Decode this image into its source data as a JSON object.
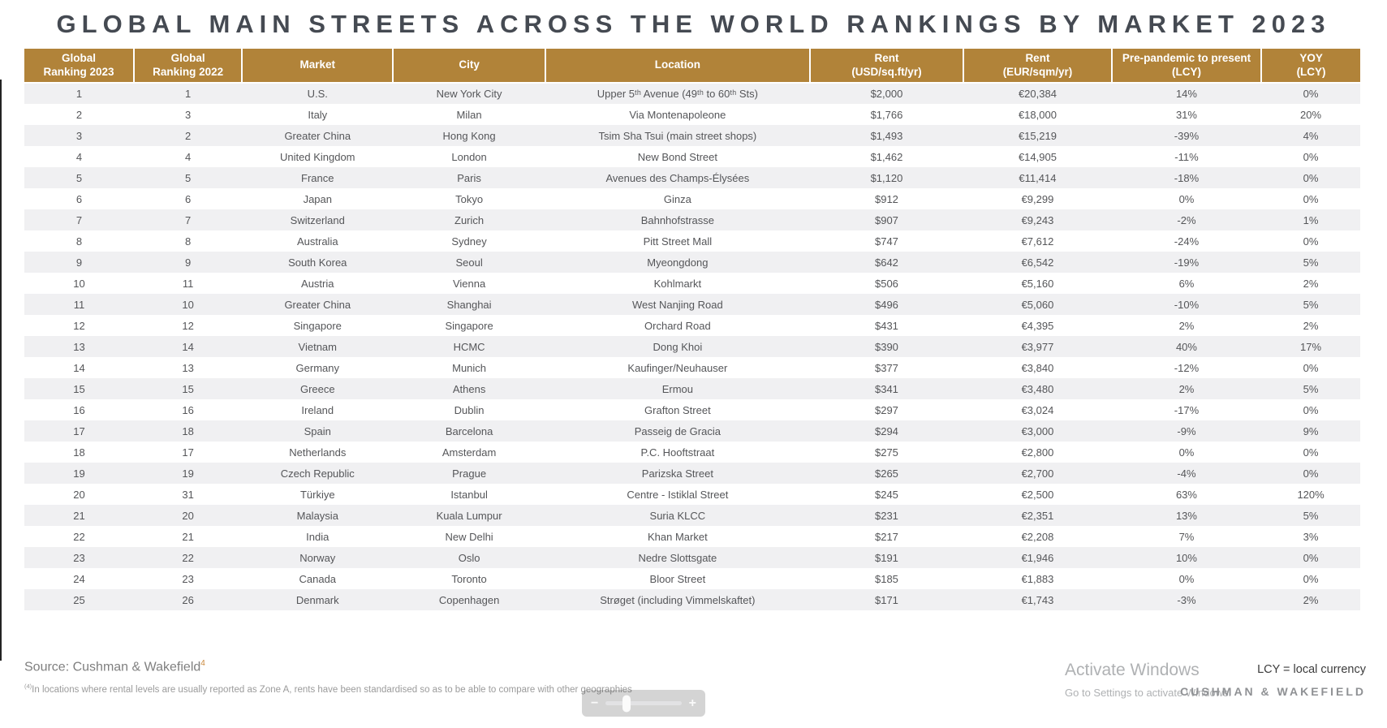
{
  "title": "GLOBAL MAIN STREETS ACROSS THE WORLD RANKINGS BY MARKET 2023",
  "table": {
    "columns": [
      "Global\nRanking 2023",
      "Global\nRanking 2022",
      "Market",
      "City",
      "Location",
      "Rent\n(USD/sq.ft/yr)",
      "Rent\n(EUR/sqm/yr)",
      "Pre-pandemic to present\n(LCY)",
      "YOY\n(LCY)"
    ],
    "rows": [
      [
        "1",
        "1",
        "U.S.",
        "New York City",
        "Upper 5ᵗʰ Avenue (49ᵗʰ to 60ᵗʰ Sts)",
        "$2,000",
        "€20,384",
        "14%",
        "0%"
      ],
      [
        "2",
        "3",
        "Italy",
        "Milan",
        "Via Montenapoleone",
        "$1,766",
        "€18,000",
        "31%",
        "20%"
      ],
      [
        "3",
        "2",
        "Greater China",
        "Hong Kong",
        "Tsim Sha Tsui (main street shops)",
        "$1,493",
        "€15,219",
        "-39%",
        "4%"
      ],
      [
        "4",
        "4",
        "United Kingdom",
        "London",
        "New Bond Street",
        "$1,462",
        "€14,905",
        "-11%",
        "0%"
      ],
      [
        "5",
        "5",
        "France",
        "Paris",
        "Avenues des Champs-Élysées",
        "$1,120",
        "€11,414",
        "-18%",
        "0%"
      ],
      [
        "6",
        "6",
        "Japan",
        "Tokyo",
        "Ginza",
        "$912",
        "€9,299",
        "0%",
        "0%"
      ],
      [
        "7",
        "7",
        "Switzerland",
        "Zurich",
        "Bahnhofstrasse",
        "$907",
        "€9,243",
        "-2%",
        "1%"
      ],
      [
        "8",
        "8",
        "Australia",
        "Sydney",
        "Pitt Street Mall",
        "$747",
        "€7,612",
        "-24%",
        "0%"
      ],
      [
        "9",
        "9",
        "South Korea",
        "Seoul",
        "Myeongdong",
        "$642",
        "€6,542",
        "-19%",
        "5%"
      ],
      [
        "10",
        "11",
        "Austria",
        "Vienna",
        "Kohlmarkt",
        "$506",
        "€5,160",
        "6%",
        "2%"
      ],
      [
        "11",
        "10",
        "Greater China",
        "Shanghai",
        "West Nanjing Road",
        "$496",
        "€5,060",
        "-10%",
        "5%"
      ],
      [
        "12",
        "12",
        "Singapore",
        "Singapore",
        "Orchard Road",
        "$431",
        "€4,395",
        "2%",
        "2%"
      ],
      [
        "13",
        "14",
        "Vietnam",
        "HCMC",
        "Dong Khoi",
        "$390",
        "€3,977",
        "40%",
        "17%"
      ],
      [
        "14",
        "13",
        "Germany",
        "Munich",
        "Kaufinger/Neuhauser",
        "$377",
        "€3,840",
        "-12%",
        "0%"
      ],
      [
        "15",
        "15",
        "Greece",
        "Athens",
        "Ermou",
        "$341",
        "€3,480",
        "2%",
        "5%"
      ],
      [
        "16",
        "16",
        "Ireland",
        "Dublin",
        "Grafton Street",
        "$297",
        "€3,024",
        "-17%",
        "0%"
      ],
      [
        "17",
        "18",
        "Spain",
        "Barcelona",
        "Passeig de Gracia",
        "$294",
        "€3,000",
        "-9%",
        "9%"
      ],
      [
        "18",
        "17",
        "Netherlands",
        "Amsterdam",
        "P.C. Hooftstraat",
        "$275",
        "€2,800",
        "0%",
        "0%"
      ],
      [
        "19",
        "19",
        "Czech Republic",
        "Prague",
        "Parizska Street",
        "$265",
        "€2,700",
        "-4%",
        "0%"
      ],
      [
        "20",
        "31",
        "Türkiye",
        "Istanbul",
        "Centre - Istiklal Street",
        "$245",
        "€2,500",
        "63%",
        "120%"
      ],
      [
        "21",
        "20",
        "Malaysia",
        "Kuala Lumpur",
        "Suria KLCC",
        "$231",
        "€2,351",
        "13%",
        "5%"
      ],
      [
        "22",
        "21",
        "India",
        "New Delhi",
        "Khan Market",
        "$217",
        "€2,208",
        "7%",
        "3%"
      ],
      [
        "23",
        "22",
        "Norway",
        "Oslo",
        "Nedre Slottsgate",
        "$191",
        "€1,946",
        "10%",
        "0%"
      ],
      [
        "24",
        "23",
        "Canada",
        "Toronto",
        "Bloor Street",
        "$185",
        "€1,883",
        "0%",
        "0%"
      ],
      [
        "25",
        "26",
        "Denmark",
        "Copenhagen",
        "Strøget (including Vimmelskaftet)",
        "$171",
        "€1,743",
        "-3%",
        "2%"
      ]
    ]
  },
  "footer": {
    "source_text": "Source: Cushman & Wakefield",
    "source_superscript": "4",
    "footnote_superscript": "(4)",
    "footnote_text": "In locations where rental levels are usually reported as Zone A, rents have been standardised so as to be able to compare with other geographies",
    "lcy_note": "LCY = local currency",
    "logo_text": "CUSHMAN & WAKEFIELD"
  },
  "watermark": {
    "line1": "Activate Windows",
    "line2": "Go to Settings to activate Windows."
  },
  "zoom_control": {
    "minus_label": "−",
    "plus_label": "+"
  },
  "colors": {
    "header_gold": "#B18339",
    "row_stripe_gray": "#F0F0F2",
    "title_color": "#454A52",
    "superscript_gold": "#C9883C"
  }
}
